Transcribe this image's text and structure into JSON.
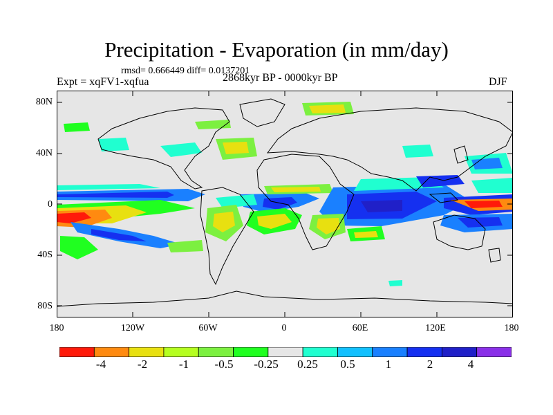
{
  "title": "Precipitation - Evaporation (in mm/day)",
  "stats": "rmsd= 0.666449  diff= 0.0137201",
  "experiment": "Expt = xqFV1-xqfua",
  "period": "2868kyr BP - 0000kyr BP",
  "season": "DJF",
  "lat_labels": [
    "80N",
    "40N",
    "0",
    "40S",
    "80S"
  ],
  "lon_labels": [
    "180",
    "120W",
    "60W",
    "0",
    "60E",
    "120E",
    "180"
  ],
  "colorbar": {
    "colors": [
      "#ff1a0a",
      "#ff8a10",
      "#e8e010",
      "#b5ff20",
      "#7cf040",
      "#20ff20",
      "#e6e6e6",
      "#20ffd0",
      "#12c0ff",
      "#1a80ff",
      "#1530f0",
      "#2020c8",
      "#8a30e8"
    ],
    "labels": [
      "-4",
      "-2",
      "-1",
      "-0.5",
      "-0.25",
      "0.25",
      "0.5",
      "1",
      "2",
      "4"
    ]
  },
  "colors": {
    "land_outline": "#000000",
    "ocean_neutral": "#e6e6e6"
  }
}
